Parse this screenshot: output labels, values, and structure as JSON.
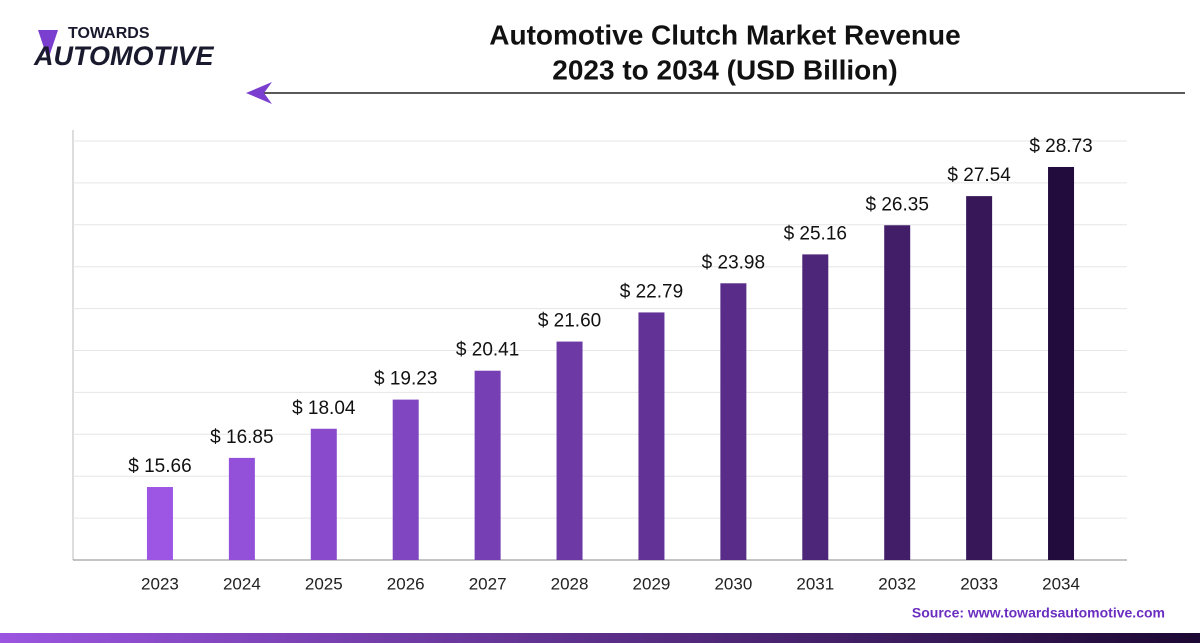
{
  "logo": {
    "line1": "TOWARDS",
    "line2": "AUTOMOTIVE"
  },
  "chart_data": {
    "type": "bar",
    "title": [
      "Automotive Clutch Market Revenue",
      "2023 to 2034 (USD Billion)"
    ],
    "categories": [
      "2023",
      "2024",
      "2025",
      "2026",
      "2027",
      "2028",
      "2029",
      "2030",
      "2031",
      "2032",
      "2033",
      "2034"
    ],
    "values": [
      15.66,
      16.85,
      18.04,
      19.23,
      20.41,
      21.6,
      22.79,
      23.98,
      25.16,
      26.35,
      27.54,
      28.73
    ],
    "value_labels": [
      "$ 15.66",
      "$ 16.85",
      "$ 18.04",
      "$ 19.23",
      "$ 20.41",
      "$ 21.60",
      "$ 22.79",
      "$ 23.98",
      "$ 25.16",
      "$ 26.35",
      "$ 27.54",
      "$ 28.73"
    ],
    "colors": [
      "#9d55e3",
      "#9350d8",
      "#8a4acc",
      "#8045c0",
      "#763fb3",
      "#6c39a5",
      "#623297",
      "#582c88",
      "#4d2579",
      "#421e69",
      "#371758",
      "#220c3e"
    ],
    "ylim": [
      12.68,
      30.24
    ],
    "grid": true,
    "source": "Source: www.towardsautomotive.com"
  }
}
